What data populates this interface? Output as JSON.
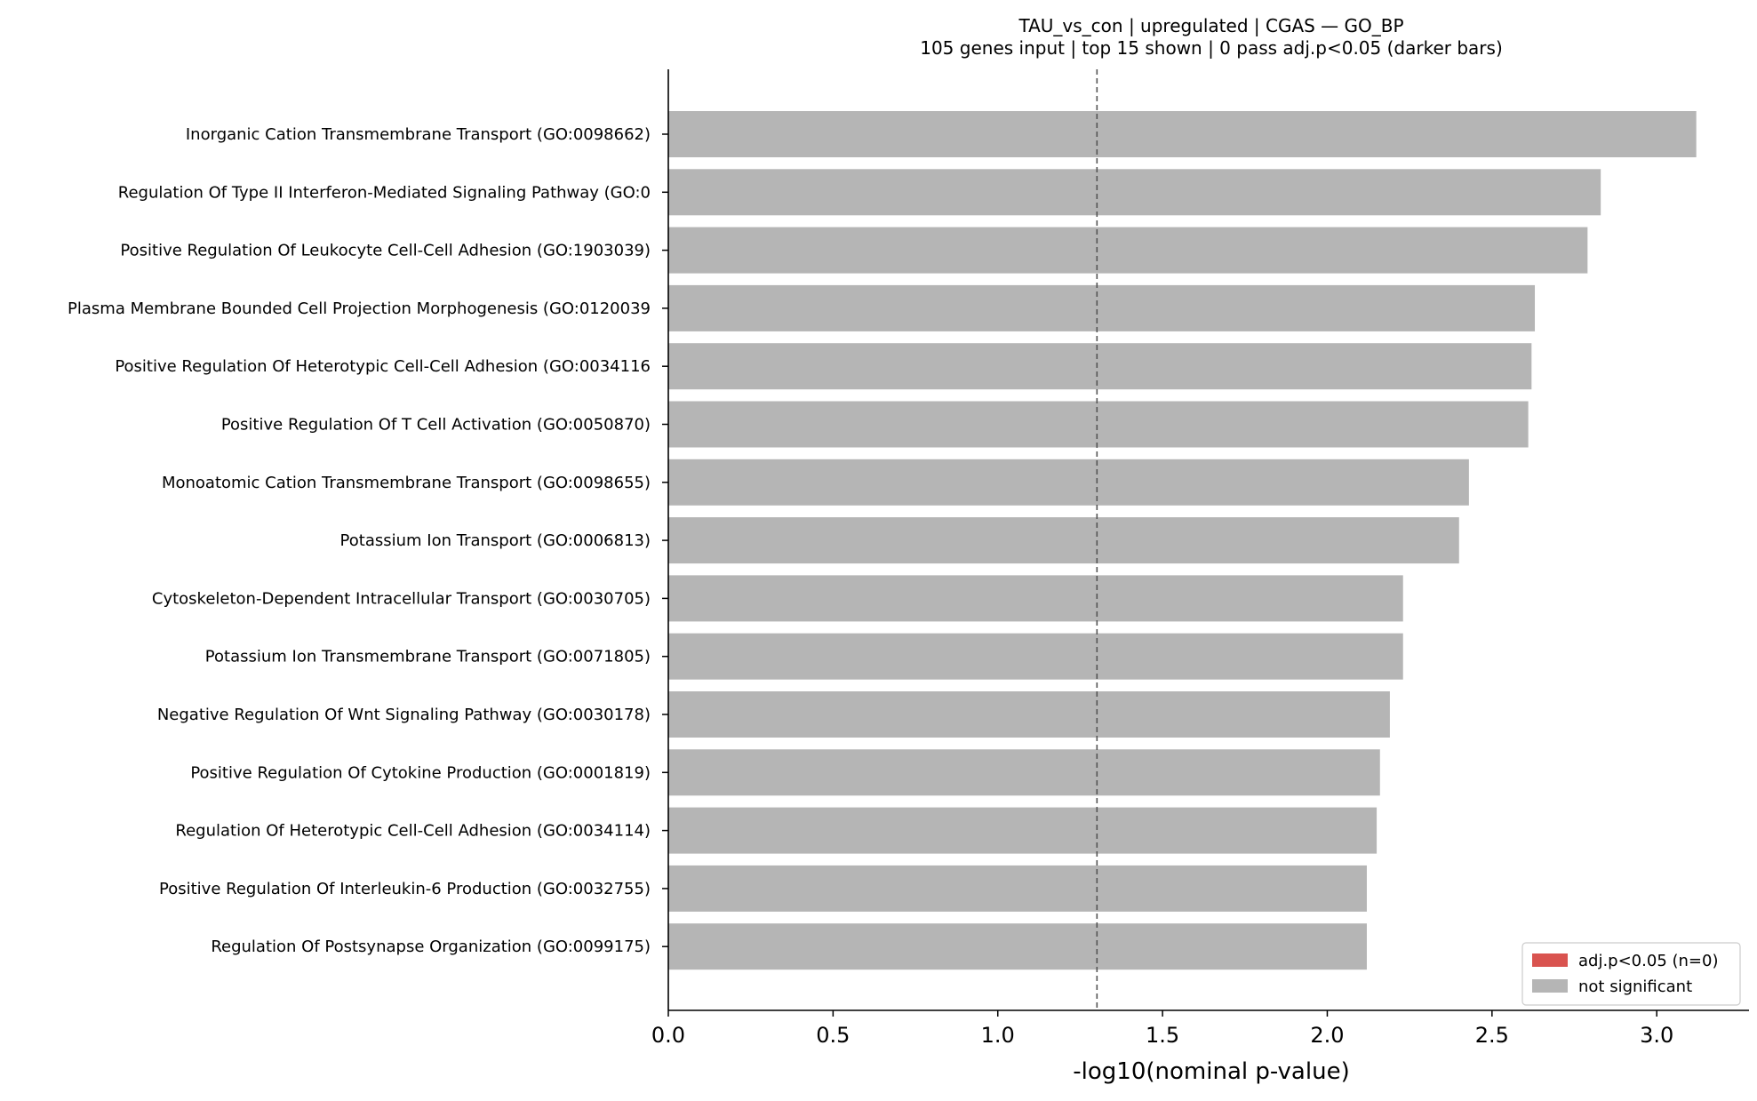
{
  "chart_data": {
    "type": "bar",
    "orientation": "horizontal",
    "title": "TAU_vs_con | upregulated | CGAS — GO_BP",
    "subtitle": "105 genes input  |  top 15 shown  |  0 pass adj.p<0.05 (darker bars)",
    "xlabel": "-log10(nominal p-value)",
    "ylabel": "",
    "xlim": [
      0,
      3.28
    ],
    "xticks": [
      "0.0",
      "0.5",
      "1.0",
      "1.5",
      "2.0",
      "2.5",
      "3.0"
    ],
    "reference_line": 1.301,
    "categories": [
      "Inorganic Cation Transmembrane Transport (GO:0098662)",
      "Regulation Of Type II Interferon-Mediated Signaling Pathway (GO:0",
      "Positive Regulation Of Leukocyte Cell-Cell Adhesion (GO:1903039)",
      "Plasma Membrane Bounded Cell Projection Morphogenesis (GO:0120039",
      "Positive Regulation Of Heterotypic Cell-Cell Adhesion (GO:0034116",
      "Positive Regulation Of T Cell Activation (GO:0050870)",
      "Monoatomic Cation Transmembrane Transport (GO:0098655)",
      "Potassium Ion Transport (GO:0006813)",
      "Cytoskeleton-Dependent Intracellular Transport (GO:0030705)",
      "Potassium Ion Transmembrane Transport (GO:0071805)",
      "Negative Regulation Of Wnt Signaling Pathway (GO:0030178)",
      "Positive Regulation Of Cytokine Production (GO:0001819)",
      "Regulation Of Heterotypic Cell-Cell Adhesion (GO:0034114)",
      "Positive Regulation Of Interleukin-6 Production (GO:0032755)",
      "Regulation Of Postsynapse Organization (GO:0099175)"
    ],
    "values": [
      3.12,
      2.83,
      2.79,
      2.63,
      2.62,
      2.61,
      2.43,
      2.4,
      2.23,
      2.23,
      2.19,
      2.16,
      2.15,
      2.12,
      2.12
    ],
    "significant": [
      false,
      false,
      false,
      false,
      false,
      false,
      false,
      false,
      false,
      false,
      false,
      false,
      false,
      false,
      false
    ],
    "legend": {
      "position": "lower-right",
      "items": [
        {
          "label": "adj.p<0.05 (n=0)",
          "color": "#d9534f"
        },
        {
          "label": "not significant",
          "color": "#b5b5b5"
        }
      ]
    },
    "colors": {
      "significant": "#d9534f",
      "not_significant": "#b5b5b5",
      "reference_line": "#555555"
    },
    "grid": false
  }
}
